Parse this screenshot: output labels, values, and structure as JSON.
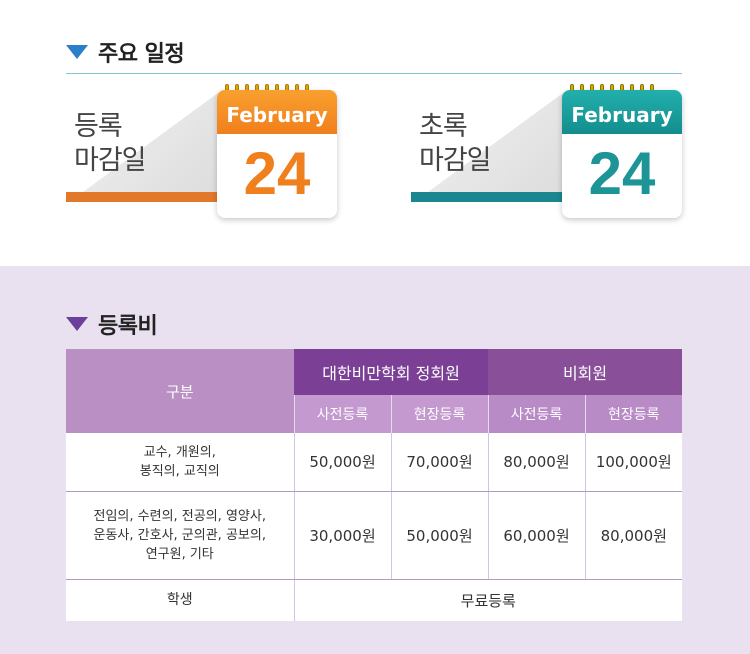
{
  "schedule": {
    "title": "주요 일정",
    "items": [
      {
        "label_line1": "등록",
        "label_line2": "마감일",
        "month": "February",
        "day": "24",
        "color": "#f07f1d"
      },
      {
        "label_line1": "초록",
        "label_line2": "마감일",
        "month": "February",
        "day": "24",
        "color": "#1d9496"
      }
    ]
  },
  "fees": {
    "title": "등록비",
    "head": {
      "category": "구분",
      "member": "대한비만학회 정회원",
      "non_member": "비회원",
      "sub": [
        "사전등록",
        "현장등록",
        "사전등록",
        "현장등록"
      ]
    },
    "rows": [
      {
        "category_line1": "교수, 개원의,",
        "category_line2": "봉직의, 교직의",
        "values": [
          "50,000원",
          "70,000원",
          "80,000원",
          "100,000원"
        ]
      },
      {
        "category_line1": "전임의, 수련의, 전공의, 영양사,",
        "category_line2": "운동사, 간호사, 군의관, 공보의,",
        "category_line3": "연구원, 기타",
        "values": [
          "30,000원",
          "50,000원",
          "60,000원",
          "80,000원"
        ]
      }
    ],
    "student": {
      "category": "학생",
      "value": "무료등록"
    }
  },
  "colors": {
    "accent_blue": "#2b7fc6",
    "accent_purple": "#6b3f9a",
    "orange": "#f07f1d",
    "teal": "#1d9496"
  }
}
